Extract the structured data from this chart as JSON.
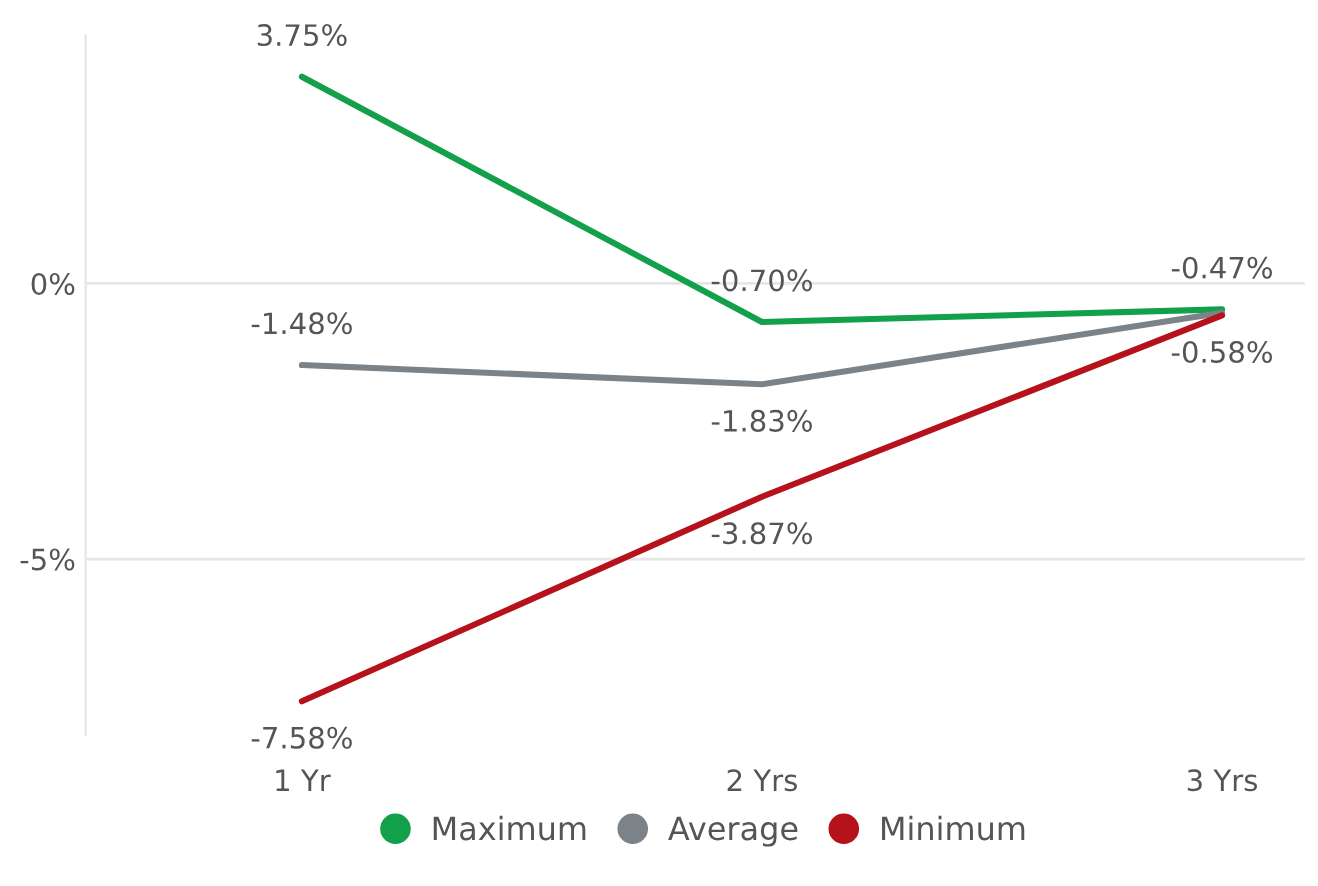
{
  "chart_data": {
    "type": "line",
    "categories": [
      "1 Yr",
      "2 Yrs",
      "3 Yrs"
    ],
    "series": [
      {
        "name": "Maximum",
        "color": "#12a04a",
        "values": [
          3.75,
          -0.7,
          -0.47
        ],
        "value_labels": [
          "3.75%",
          "-0.70%",
          "-0.47%"
        ]
      },
      {
        "name": "Average",
        "color": "#7b8389",
        "values": [
          -1.48,
          -1.83,
          -0.53
        ],
        "value_labels": [
          "-1.48%",
          "-1.83%",
          null
        ]
      },
      {
        "name": "Minimum",
        "color": "#b5121b",
        "values": [
          -7.58,
          -3.87,
          -0.58
        ],
        "value_labels": [
          "-7.58%",
          "-3.87%",
          "-0.58%"
        ]
      }
    ],
    "ylim": [
      -8.2,
      4.5
    ],
    "yticks": [
      {
        "value": 0,
        "label": "0%"
      },
      {
        "value": -5,
        "label": "-5%"
      }
    ],
    "grid": "y",
    "legend": "bottom",
    "marker": "none",
    "line_style": "solid"
  }
}
